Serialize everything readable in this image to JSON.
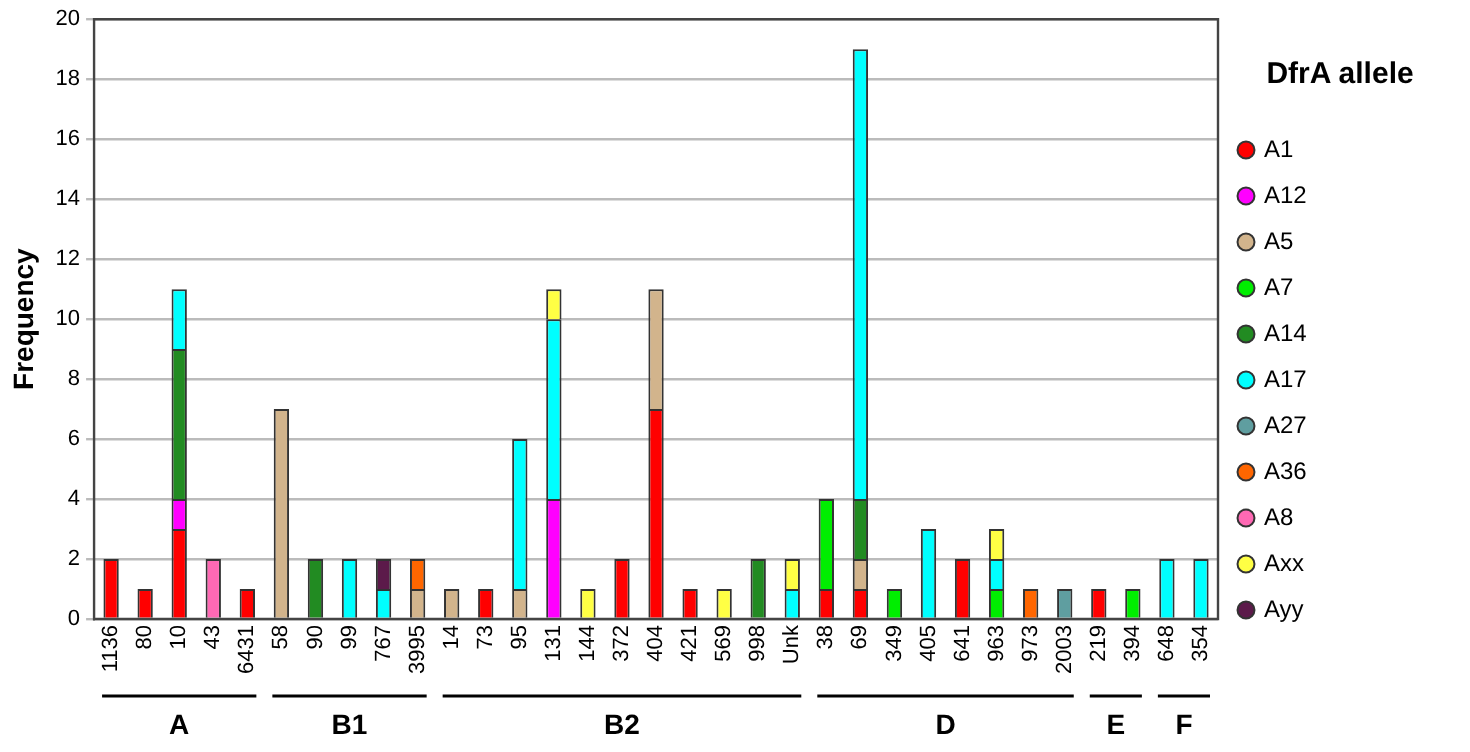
{
  "chart_data": {
    "type": "bar",
    "stacked": true,
    "ylabel": "Frequency",
    "legend_title": "DfrA allele",
    "legend": "right",
    "marker": "circle",
    "grid": "y",
    "ylim": [
      0,
      20
    ],
    "yticks": [
      0,
      2,
      4,
      6,
      8,
      10,
      12,
      14,
      16,
      18,
      20
    ],
    "categories": [
      "1136",
      "80",
      "10",
      "43",
      "6431",
      "58",
      "90",
      "99",
      "767",
      "3995",
      "14",
      "73",
      "95",
      "131",
      "144",
      "372",
      "404",
      "421",
      "569",
      "998",
      "Unk",
      "38",
      "69",
      "349",
      "405",
      "641",
      "963",
      "973",
      "2003",
      "219",
      "394",
      "648",
      "354"
    ],
    "annotations": [
      "A",
      "B1",
      "B2",
      "D",
      "E",
      "F"
    ],
    "series": [
      {
        "name": "A1",
        "color": "#ff0000",
        "values": [
          2,
          1,
          3,
          null,
          1,
          null,
          null,
          null,
          null,
          null,
          null,
          1,
          null,
          null,
          null,
          2,
          7,
          1,
          null,
          null,
          null,
          1,
          1,
          null,
          null,
          2,
          null,
          null,
          null,
          1,
          null,
          null,
          null
        ]
      },
      {
        "name": "A12",
        "color": "#ff00ff",
        "values": [
          null,
          null,
          1,
          null,
          null,
          null,
          null,
          null,
          null,
          null,
          null,
          null,
          null,
          4,
          null,
          null,
          null,
          null,
          null,
          null,
          null,
          null,
          null,
          null,
          null,
          null,
          null,
          null,
          null,
          null,
          null,
          null,
          null
        ]
      },
      {
        "name": "A5",
        "color": "#d2b48c",
        "values": [
          null,
          null,
          null,
          null,
          null,
          7,
          null,
          null,
          null,
          1,
          1,
          null,
          1,
          null,
          null,
          null,
          4,
          null,
          null,
          null,
          null,
          null,
          1,
          null,
          null,
          null,
          null,
          null,
          null,
          null,
          null,
          null,
          null
        ]
      },
      {
        "name": "A7",
        "color": "#00ee00",
        "values": [
          null,
          null,
          null,
          null,
          null,
          null,
          null,
          null,
          null,
          null,
          null,
          null,
          null,
          null,
          null,
          null,
          null,
          null,
          null,
          null,
          null,
          3,
          null,
          1,
          null,
          null,
          1,
          null,
          null,
          null,
          1,
          null,
          null
        ]
      },
      {
        "name": "A14",
        "color": "#228b22",
        "values": [
          null,
          null,
          5,
          null,
          null,
          null,
          2,
          null,
          null,
          null,
          null,
          null,
          null,
          null,
          null,
          null,
          null,
          null,
          null,
          2,
          null,
          null,
          2,
          null,
          null,
          null,
          null,
          null,
          null,
          null,
          null,
          null,
          null
        ]
      },
      {
        "name": "A17",
        "color": "#00ffff",
        "values": [
          null,
          null,
          2,
          null,
          null,
          null,
          null,
          2,
          1,
          null,
          null,
          null,
          5,
          6,
          null,
          null,
          null,
          null,
          null,
          null,
          1,
          null,
          15,
          null,
          3,
          null,
          1,
          null,
          null,
          null,
          null,
          2,
          2
        ]
      },
      {
        "name": "A27",
        "color": "#5f9ea0",
        "values": [
          null,
          null,
          null,
          null,
          null,
          null,
          null,
          null,
          null,
          null,
          null,
          null,
          null,
          null,
          null,
          null,
          null,
          null,
          null,
          null,
          null,
          null,
          null,
          null,
          null,
          null,
          null,
          null,
          1,
          null,
          null,
          null,
          null
        ]
      },
      {
        "name": "A36",
        "color": "#ff6600",
        "values": [
          null,
          null,
          null,
          null,
          null,
          null,
          null,
          null,
          null,
          1,
          null,
          null,
          null,
          null,
          null,
          null,
          null,
          null,
          null,
          null,
          null,
          null,
          null,
          null,
          null,
          null,
          null,
          1,
          null,
          null,
          null,
          null,
          null
        ]
      },
      {
        "name": "A8",
        "color": "#ff69b4",
        "values": [
          null,
          null,
          null,
          2,
          null,
          null,
          null,
          null,
          null,
          null,
          null,
          null,
          null,
          null,
          null,
          null,
          null,
          null,
          null,
          null,
          null,
          null,
          null,
          null,
          null,
          null,
          null,
          null,
          null,
          null,
          null,
          null,
          null
        ]
      },
      {
        "name": "Axx",
        "color": "#ffff44",
        "values": [
          null,
          null,
          null,
          null,
          null,
          null,
          null,
          null,
          null,
          null,
          null,
          null,
          null,
          1,
          1,
          null,
          null,
          null,
          1,
          null,
          1,
          null,
          null,
          null,
          null,
          null,
          1,
          null,
          null,
          null,
          null,
          null,
          null
        ]
      },
      {
        "name": "Ayy",
        "color": "#5c1a4a",
        "values": [
          null,
          null,
          null,
          null,
          null,
          null,
          null,
          null,
          1,
          null,
          null,
          null,
          null,
          null,
          null,
          null,
          null,
          null,
          null,
          null,
          null,
          null,
          null,
          null,
          null,
          null,
          null,
          null,
          null,
          null,
          null,
          null,
          null
        ]
      }
    ]
  }
}
